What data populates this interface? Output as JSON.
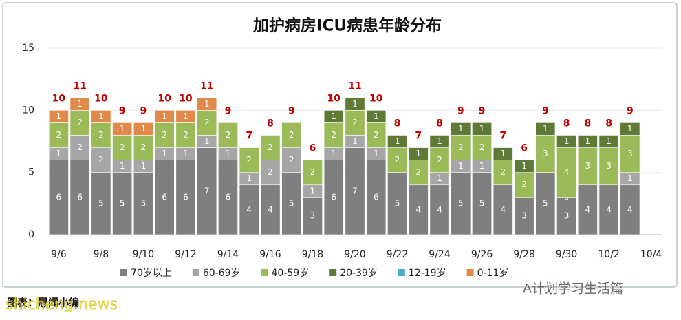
{
  "chart_data": {
    "type": "stacked_bar",
    "title": "加护病房ICU病患年龄分布",
    "categories": [
      "9/6",
      null,
      "9/8",
      null,
      "9/10",
      null,
      "9/12",
      null,
      "9/14",
      null,
      "9/16",
      null,
      "9/18",
      null,
      "9/20",
      null,
      "9/22",
      null,
      "9/24",
      null,
      "9/26",
      null,
      "9/28",
      null,
      "9/30",
      null,
      "10/2",
      null,
      "10/4"
    ],
    "series": [
      {
        "name": "70岁以上",
        "color": "#7f7f7f",
        "values": [
          6,
          6,
          5,
          5,
          5,
          6,
          6,
          7,
          6,
          4,
          4,
          5,
          3,
          6,
          7,
          6,
          5,
          4,
          4,
          5,
          5,
          4,
          3,
          5,
          3,
          4,
          4,
          4,
          null
        ]
      },
      {
        "name": "60-69岁",
        "color": "#a6a6a6",
        "values": [
          1,
          2,
          2,
          1,
          1,
          1,
          1,
          1,
          1,
          1,
          2,
          2,
          1,
          1,
          1,
          1,
          null,
          null,
          1,
          1,
          1,
          null,
          null,
          null,
          0,
          null,
          null,
          1,
          null
        ]
      },
      {
        "name": "40-59岁",
        "color": "#9bbb59",
        "values": [
          2,
          2,
          2,
          2,
          2,
          2,
          2,
          2,
          2,
          2,
          2,
          2,
          2,
          2,
          2,
          2,
          2,
          2,
          2,
          2,
          2,
          2,
          2,
          3,
          4,
          3,
          3,
          3,
          null
        ]
      },
      {
        "name": "20-39岁",
        "color": "#5f7a36",
        "values": [
          null,
          null,
          null,
          null,
          null,
          null,
          null,
          null,
          null,
          null,
          null,
          null,
          null,
          1,
          1,
          1,
          1,
          1,
          1,
          1,
          1,
          1,
          1,
          1,
          1,
          1,
          1,
          1,
          null
        ]
      },
      {
        "name": "12-19岁",
        "color": "#4bacc6",
        "values": [
          null,
          null,
          null,
          null,
          null,
          null,
          null,
          null,
          null,
          null,
          null,
          null,
          null,
          null,
          null,
          null,
          null,
          null,
          null,
          null,
          null,
          null,
          null,
          null,
          null,
          null,
          null,
          null,
          null
        ]
      },
      {
        "name": "0-11岁",
        "color": "#e0894a",
        "values": [
          1,
          1,
          1,
          1,
          1,
          1,
          1,
          1,
          null,
          null,
          null,
          null,
          null,
          null,
          null,
          null,
          null,
          null,
          null,
          null,
          null,
          null,
          null,
          null,
          null,
          null,
          null,
          null,
          null
        ]
      }
    ],
    "totals": [
      10,
      11,
      10,
      9,
      9,
      10,
      10,
      11,
      9,
      7,
      8,
      9,
      6,
      10,
      11,
      10,
      8,
      7,
      8,
      9,
      9,
      7,
      6,
      9,
      8,
      8,
      8,
      9,
      null
    ],
    "ylim": [
      0,
      15
    ],
    "yticks": [
      0,
      5,
      10,
      15
    ],
    "grid": true,
    "legend": "bottom"
  },
  "caption": "图表：思闻小编",
  "watermarks": [
    "A计划学习生活篇",
    "shicheng.news"
  ]
}
